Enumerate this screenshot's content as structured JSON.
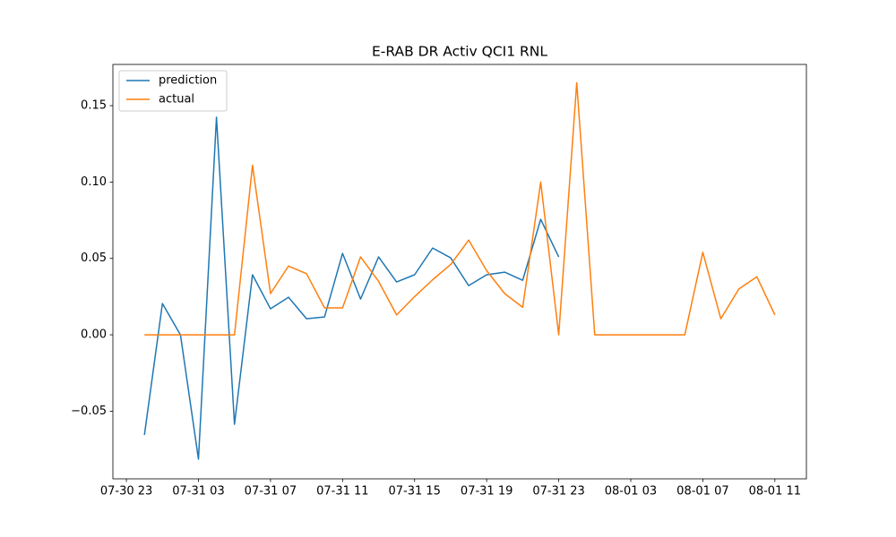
{
  "chart_data": {
    "type": "line",
    "title": "E-RAB DR Activ QCI1 RNL",
    "x": [
      "07-31 00",
      "07-31 01",
      "07-31 02",
      "07-31 03",
      "07-31 04",
      "07-31 05",
      "07-31 06",
      "07-31 07",
      "07-31 08",
      "07-31 09",
      "07-31 10",
      "07-31 11",
      "07-31 12",
      "07-31 13",
      "07-31 14",
      "07-31 15",
      "07-31 16",
      "07-31 17",
      "07-31 18",
      "07-31 19",
      "07-31 20",
      "07-31 21",
      "07-31 22",
      "07-31 23",
      "08-01 00",
      "08-01 01",
      "08-01 02",
      "08-01 03",
      "08-01 04",
      "08-01 05",
      "08-01 06",
      "08-01 07",
      "08-01 08",
      "08-01 09",
      "08-01 10",
      "08-01 11"
    ],
    "series": [
      {
        "name": "prediction",
        "color": "#1f77b4",
        "values": [
          -0.0656,
          0.0205,
          0,
          -0.0814,
          0.1424,
          -0.0586,
          0.0393,
          0.017,
          0.0246,
          0.0105,
          0.0117,
          0.0533,
          0.0234,
          0.051,
          0.0346,
          0.0393,
          0.0568,
          0.0504,
          0.0322,
          0.0393,
          0.041,
          0.0357,
          0.0756,
          0.051,
          null,
          null,
          null,
          null,
          null,
          null,
          null,
          null,
          null,
          null,
          null,
          null
        ]
      },
      {
        "name": "actual",
        "color": "#ff7f0e",
        "values": [
          0,
          0,
          0,
          0,
          0,
          0,
          0.111,
          0.027,
          0.045,
          0.04,
          0.0176,
          0.0176,
          0.051,
          0.035,
          0.013,
          0.025,
          0.036,
          0.046,
          0.062,
          0.042,
          0.027,
          0.018,
          0.1,
          0,
          0.165,
          0,
          0,
          0,
          0,
          0,
          0,
          0.054,
          0.0105,
          0.03,
          0.038,
          0.013
        ]
      }
    ],
    "xlim": [
      "07-30 22:15",
      "08-01 12:45"
    ],
    "xticks": [
      "07-30 23",
      "07-31 03",
      "07-31 07",
      "07-31 11",
      "07-31 15",
      "07-31 19",
      "07-31 23",
      "08-01 03",
      "08-01 07",
      "08-01 11"
    ],
    "ylim": [
      -0.0943,
      0.177
    ],
    "yticks": [
      {
        "value": -0.05,
        "label": "−0.05"
      },
      {
        "value": 0,
        "label": "0.00"
      },
      {
        "value": 0.05,
        "label": "0.05"
      },
      {
        "value": 0.1,
        "label": "0.10"
      },
      {
        "value": 0.15,
        "label": "0.15"
      }
    ],
    "legend": "upper left",
    "grid": false
  }
}
